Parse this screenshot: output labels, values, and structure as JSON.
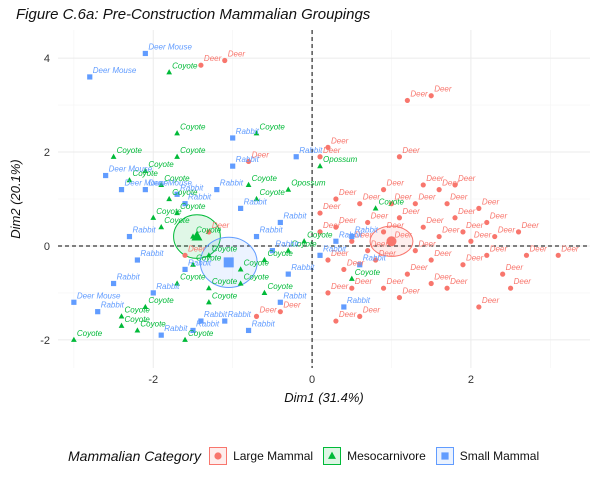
{
  "chart_data": {
    "type": "scatter",
    "title": "Figure C.6a: Pre-Construction Mammalian Groupings",
    "xlabel": "Dim1 (31.4%)",
    "ylabel": "Dim2 (20.1%)",
    "xlim": [
      -3.2,
      3.5
    ],
    "ylim": [
      -2.6,
      4.6
    ],
    "xticks": [
      -2,
      0,
      2
    ],
    "yticks": [
      -2,
      0,
      2,
      4
    ],
    "grid": true,
    "reference_lines": {
      "x": 0,
      "y": 0,
      "style": "dashed"
    },
    "legend": {
      "title": "Mammalian Category",
      "placement": "bottom"
    },
    "series": [
      {
        "name": "Large Mammal",
        "color": "#F8766D",
        "marker": "circle",
        "centroid": [
          1.0,
          0.1
        ],
        "points": [
          {
            "x": -1.4,
            "y": 3.85,
            "label": "Deer"
          },
          {
            "x": -1.1,
            "y": 3.95,
            "label": "Deer"
          },
          {
            "x": 1.2,
            "y": 3.1,
            "label": "Deer"
          },
          {
            "x": 1.5,
            "y": 3.2,
            "label": "Deer"
          },
          {
            "x": -0.8,
            "y": 1.8,
            "label": "Deer"
          },
          {
            "x": 0.2,
            "y": 2.1,
            "label": "Deer"
          },
          {
            "x": 0.1,
            "y": 1.9,
            "label": "Deer"
          },
          {
            "x": 1.1,
            "y": 1.9,
            "label": "Deer"
          },
          {
            "x": 1.4,
            "y": 1.3,
            "label": "Deer"
          },
          {
            "x": 1.6,
            "y": 1.2,
            "label": "Deer"
          },
          {
            "x": 1.8,
            "y": 1.3,
            "label": "Deer"
          },
          {
            "x": 2.1,
            "y": 0.8,
            "label": "Deer"
          },
          {
            "x": 2.2,
            "y": 0.5,
            "label": "Deer"
          },
          {
            "x": 2.3,
            "y": 0.2,
            "label": "Deer"
          },
          {
            "x": 2.6,
            "y": 0.3,
            "label": "Deer"
          },
          {
            "x": 3.1,
            "y": -0.2,
            "label": "Deer"
          },
          {
            "x": 2.4,
            "y": -0.6,
            "label": "Deer"
          },
          {
            "x": 2.5,
            "y": -0.9,
            "label": "Deer"
          },
          {
            "x": 2.1,
            "y": -1.3,
            "label": "Deer"
          },
          {
            "x": 1.7,
            "y": -0.9,
            "label": "Deer"
          },
          {
            "x": 1.5,
            "y": -0.8,
            "label": "Deer"
          },
          {
            "x": 1.2,
            "y": -0.6,
            "label": "Deer"
          },
          {
            "x": -1.3,
            "y": 0.3,
            "label": "Deer"
          },
          {
            "x": -1.6,
            "y": -0.2,
            "label": "Deer"
          },
          {
            "x": -0.7,
            "y": -1.5,
            "label": "Deer"
          },
          {
            "x": -0.4,
            "y": -1.4,
            "label": "Deer"
          },
          {
            "x": 0.3,
            "y": -1.6,
            "label": "Deer"
          },
          {
            "x": 0.6,
            "y": -1.5,
            "label": "Deer"
          },
          {
            "x": 0.1,
            "y": 0.3,
            "label": "Deer"
          },
          {
            "x": 0.5,
            "y": 0.1,
            "label": "Deer"
          },
          {
            "x": 0.9,
            "y": 0.3,
            "label": "Deer"
          },
          {
            "x": 1.0,
            "y": 0.1,
            "label": "Deer"
          },
          {
            "x": 1.3,
            "y": -0.1,
            "label": "Deer"
          },
          {
            "x": 1.6,
            "y": 0.2,
            "label": "Deer"
          },
          {
            "x": 0.8,
            "y": -0.3,
            "label": "Deer"
          },
          {
            "x": 0.4,
            "y": -0.5,
            "label": "Deer"
          },
          {
            "x": 0.2,
            "y": -0.3,
            "label": "Deer"
          },
          {
            "x": 1.8,
            "y": 0.6,
            "label": "Deer"
          },
          {
            "x": 1.9,
            "y": -0.4,
            "label": "Deer"
          },
          {
            "x": 2.7,
            "y": -0.2,
            "label": "Deer"
          },
          {
            "x": 0.1,
            "y": 0.7,
            "label": "Deer"
          },
          {
            "x": 0.7,
            "y": 0.5,
            "label": "Deer"
          },
          {
            "x": 1.1,
            "y": 0.6,
            "label": "Deer"
          },
          {
            "x": 1.4,
            "y": 0.4,
            "label": "Deer"
          },
          {
            "x": 0.3,
            "y": 1.0,
            "label": "Deer"
          },
          {
            "x": 0.6,
            "y": 0.9,
            "label": "Deer"
          },
          {
            "x": 0.9,
            "y": 1.2,
            "label": "Deer"
          },
          {
            "x": 1.3,
            "y": 0.9,
            "label": "Deer"
          },
          {
            "x": 1.7,
            "y": 0.9,
            "label": "Deer"
          },
          {
            "x": 2.0,
            "y": 0.1,
            "label": "Deer"
          },
          {
            "x": 0.5,
            "y": -0.9,
            "label": "Deer"
          },
          {
            "x": 0.9,
            "y": -0.9,
            "label": "Deer"
          },
          {
            "x": 1.1,
            "y": -1.1,
            "label": "Deer"
          },
          {
            "x": 1.5,
            "y": -0.3,
            "label": "Deer"
          },
          {
            "x": 0.2,
            "y": -1.0,
            "label": "Deer"
          },
          {
            "x": 1.0,
            "y": 0.9,
            "label": "Deer"
          },
          {
            "x": 0.7,
            "y": -0.1,
            "label": "Deer"
          },
          {
            "x": 2.2,
            "y": -0.2,
            "label": "Deer"
          },
          {
            "x": 1.9,
            "y": 0.3,
            "label": "Deer"
          },
          {
            "x": 0.3,
            "y": 0.4,
            "label": "Deer"
          }
        ]
      },
      {
        "name": "Mesocarnivore",
        "color": "#00BA38",
        "marker": "triangle",
        "centroid": [
          -1.45,
          0.2
        ],
        "points": [
          {
            "x": -1.8,
            "y": 3.7,
            "label": "Coyote"
          },
          {
            "x": -2.5,
            "y": 1.9,
            "label": "Coyote"
          },
          {
            "x": -1.7,
            "y": 2.4,
            "label": "Coyote"
          },
          {
            "x": -1.7,
            "y": 1.9,
            "label": "Coyote"
          },
          {
            "x": -0.7,
            "y": 2.4,
            "label": "Coyote"
          },
          {
            "x": -2.1,
            "y": 1.6,
            "label": "Coyote"
          },
          {
            "x": -1.9,
            "y": 1.3,
            "label": "Coyote"
          },
          {
            "x": -2.3,
            "y": 1.4,
            "label": "Coyote"
          },
          {
            "x": -1.8,
            "y": 1.0,
            "label": "Coyote"
          },
          {
            "x": -2.0,
            "y": 0.6,
            "label": "Coyote"
          },
          {
            "x": -1.9,
            "y": 0.4,
            "label": "Coyote"
          },
          {
            "x": -1.7,
            "y": 0.7,
            "label": "Coyote"
          },
          {
            "x": -0.8,
            "y": 1.3,
            "label": "Coyote"
          },
          {
            "x": -0.7,
            "y": 1.0,
            "label": "Coyote"
          },
          {
            "x": -1.3,
            "y": -0.2,
            "label": "Coyote"
          },
          {
            "x": -1.5,
            "y": -0.4,
            "label": "Coyote"
          },
          {
            "x": -0.6,
            "y": -0.3,
            "label": "Coyote"
          },
          {
            "x": -0.3,
            "y": -0.1,
            "label": "Coyote"
          },
          {
            "x": -0.1,
            "y": 0.1,
            "label": "Coyote"
          },
          {
            "x": -1.7,
            "y": -0.8,
            "label": "Coyote"
          },
          {
            "x": -1.3,
            "y": -0.9,
            "label": "Coyote"
          },
          {
            "x": -0.9,
            "y": -0.8,
            "label": "Coyote"
          },
          {
            "x": -0.6,
            "y": -1.0,
            "label": "Coyote"
          },
          {
            "x": -1.3,
            "y": -1.2,
            "label": "Coyote"
          },
          {
            "x": -2.1,
            "y": -1.3,
            "label": "Coyote"
          },
          {
            "x": -2.4,
            "y": -1.5,
            "label": "Coyote"
          },
          {
            "x": -2.4,
            "y": -1.7,
            "label": "Coyote"
          },
          {
            "x": -2.2,
            "y": -1.8,
            "label": "Coyote"
          },
          {
            "x": -3.0,
            "y": -2.0,
            "label": "Coyote"
          },
          {
            "x": -1.6,
            "y": -2.0,
            "label": "Coyote"
          },
          {
            "x": -0.3,
            "y": 1.2,
            "label": "Opossum"
          },
          {
            "x": 0.1,
            "y": 1.7,
            "label": "Opossum"
          },
          {
            "x": 0.8,
            "y": 0.8,
            "label": "Coyote"
          },
          {
            "x": 0.5,
            "y": -0.7,
            "label": "Coyote"
          },
          {
            "x": -1.5,
            "y": 0.2,
            "label": "Coyote"
          },
          {
            "x": -0.9,
            "y": -0.5,
            "label": "Coyote"
          }
        ]
      },
      {
        "name": "Small Mammal",
        "color": "#619CFF",
        "marker": "square",
        "centroid": [
          -1.05,
          -0.35
        ],
        "points": [
          {
            "x": -2.1,
            "y": 4.1,
            "label": "Deer Mouse"
          },
          {
            "x": -2.8,
            "y": 3.6,
            "label": "Deer Mouse"
          },
          {
            "x": -1.0,
            "y": 2.3,
            "label": "Rabbit"
          },
          {
            "x": -1.0,
            "y": 1.7,
            "label": "Rabbit"
          },
          {
            "x": -2.6,
            "y": 1.5,
            "label": "Deer Mouse"
          },
          {
            "x": -2.4,
            "y": 1.2,
            "label": "Deer Mouse"
          },
          {
            "x": -2.1,
            "y": 1.2,
            "label": "Deer Mouse"
          },
          {
            "x": -1.7,
            "y": 1.1,
            "label": "Rabbit"
          },
          {
            "x": -1.6,
            "y": 0.9,
            "label": "Rabbit"
          },
          {
            "x": -0.7,
            "y": 0.2,
            "label": "Rabbit"
          },
          {
            "x": -0.4,
            "y": 0.5,
            "label": "Rabbit"
          },
          {
            "x": -0.5,
            "y": -0.1,
            "label": "Rabbit"
          },
          {
            "x": 0.3,
            "y": 0.1,
            "label": "Rabbit"
          },
          {
            "x": 0.5,
            "y": 0.2,
            "label": "Rabbit"
          },
          {
            "x": 0.6,
            "y": -0.4,
            "label": "Rabbit"
          },
          {
            "x": 0.4,
            "y": -1.3,
            "label": "Rabbit"
          },
          {
            "x": -3.0,
            "y": -1.2,
            "label": "Deer Mouse"
          },
          {
            "x": -2.7,
            "y": -1.4,
            "label": "Rabbit"
          },
          {
            "x": -1.9,
            "y": -1.9,
            "label": "Rabbit"
          },
          {
            "x": -1.4,
            "y": -1.6,
            "label": "Rabbit"
          },
          {
            "x": -1.1,
            "y": -1.6,
            "label": "Rabbit"
          },
          {
            "x": -0.8,
            "y": -1.8,
            "label": "Rabbit"
          },
          {
            "x": -1.5,
            "y": -1.8,
            "label": "Rabbit"
          },
          {
            "x": -0.2,
            "y": 1.9,
            "label": "Rabbit"
          },
          {
            "x": -1.6,
            "y": -0.5,
            "label": "Rabbit"
          },
          {
            "x": -2.3,
            "y": 0.2,
            "label": "Rabbit"
          },
          {
            "x": -2.2,
            "y": -0.3,
            "label": "Rabbit"
          },
          {
            "x": -1.2,
            "y": 1.2,
            "label": "Rabbit"
          },
          {
            "x": -0.9,
            "y": 0.8,
            "label": "Rabbit"
          },
          {
            "x": -0.3,
            "y": -0.6,
            "label": "Rabbit"
          },
          {
            "x": 0.1,
            "y": -0.2,
            "label": "Rabbit"
          },
          {
            "x": -2.5,
            "y": -0.8,
            "label": "Rabbit"
          },
          {
            "x": -2.0,
            "y": -1.0,
            "label": "Rabbit"
          },
          {
            "x": -0.4,
            "y": -1.2,
            "label": "Rabbit"
          }
        ]
      }
    ]
  }
}
